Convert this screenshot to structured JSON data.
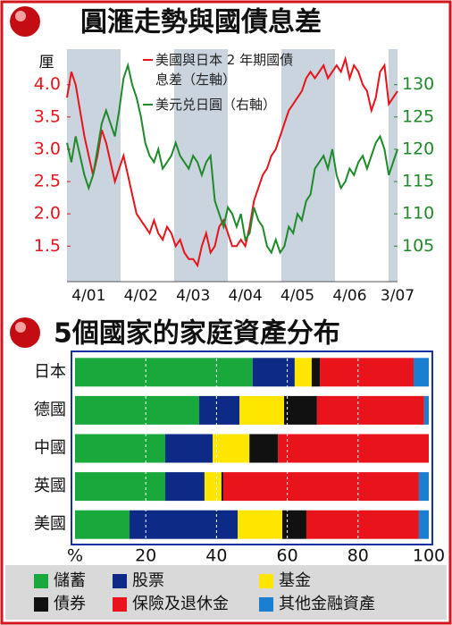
{
  "chart_data": [
    {
      "type": "line",
      "title": "圓滙走勢與國債息差",
      "y_label": "厘",
      "categories": [
        null,
        null,
        null,
        null,
        null,
        "4/01",
        null,
        null,
        null,
        null,
        null,
        null,
        null,
        null,
        null,
        null,
        null,
        "4/02",
        null,
        null,
        null,
        null,
        null,
        null,
        null,
        null,
        null,
        null,
        null,
        "4/03",
        null,
        null,
        null,
        null,
        null,
        null,
        null,
        null,
        null,
        null,
        null,
        "4/04",
        null,
        null,
        null,
        null,
        null,
        null,
        null,
        null,
        null,
        null,
        null,
        "4/05",
        null,
        null,
        null,
        null,
        null,
        null,
        null,
        null,
        null,
        null,
        null,
        "4/06",
        null,
        null,
        null,
        null,
        null,
        null,
        null,
        null,
        null,
        null,
        "3/07"
      ],
      "series": [
        {
          "name": "美國與日本 2 年期國債息差（左軸）",
          "color": "#e8131b",
          "values": [
            3.8,
            4.2,
            4.0,
            3.6,
            3.2,
            2.9,
            2.6,
            2.9,
            3.3,
            3.1,
            2.8,
            2.5,
            2.7,
            2.9,
            2.6,
            2.3,
            2.0,
            1.9,
            1.8,
            1.7,
            1.9,
            1.7,
            1.6,
            1.8,
            1.7,
            1.5,
            1.6,
            1.4,
            1.3,
            1.3,
            1.2,
            1.5,
            1.7,
            1.4,
            1.5,
            1.8,
            1.9,
            1.7,
            1.5,
            1.5,
            1.6,
            1.5,
            1.8,
            2.2,
            2.4,
            2.6,
            2.7,
            2.9,
            3.0,
            3.2,
            3.4,
            3.6,
            3.7,
            3.8,
            3.9,
            4.1,
            4.2,
            4.1,
            4.2,
            4.3,
            4.1,
            4.2,
            4.3,
            4.2,
            4.4,
            4.1,
            4.3,
            4.2,
            4.0,
            3.9,
            3.6,
            3.8,
            4.2,
            4.3,
            3.7,
            3.8,
            3.9
          ]
        },
        {
          "name": "美元兑日圓（右軸）",
          "color": "#1e8a2a",
          "axis": "y2",
          "values": [
            121,
            118,
            122,
            119,
            116,
            114,
            116,
            120,
            124,
            126,
            124,
            122,
            126,
            131,
            133,
            130,
            128,
            125,
            121,
            119,
            118,
            120,
            117,
            118,
            119,
            121,
            119,
            118,
            117,
            119,
            118,
            116,
            118,
            119,
            112,
            110,
            108,
            111,
            110,
            108,
            110,
            106,
            107,
            111,
            109,
            108,
            105,
            104,
            106,
            104,
            105,
            108,
            107,
            110,
            109,
            112,
            113,
            117,
            118,
            119,
            117,
            120,
            116,
            114,
            115,
            117,
            116,
            118,
            119,
            117,
            119,
            121,
            122,
            120,
            116,
            118,
            120
          ]
        }
      ],
      "ylim": [
        0.95,
        4.55
      ],
      "yticks": [
        1.5,
        {
          "value": 2,
          "label": "2.0"
        },
        2.5,
        {
          "value": 3,
          "label": "3.0"
        },
        3.5,
        {
          "value": 4,
          "label": "4.0"
        }
      ],
      "y2lim": [
        99.5,
        135.5
      ],
      "y2ticks": [
        105,
        110,
        115,
        120,
        125,
        130
      ],
      "grid": false
    },
    {
      "type": "stacked_bar_horizontal",
      "title": "5個國家的家庭資產分布",
      "categories": [
        "日本",
        "德國",
        "中國",
        "英國",
        "美國"
      ],
      "series": [
        {
          "name": "儲蓄",
          "color": "#19a83b",
          "values": [
            50.2,
            35.1,
            25.5,
            25.5,
            15.4
          ]
        },
        {
          "name": "股票",
          "color": "#0d2a86",
          "values": [
            11.9,
            11.4,
            13.4,
            11.1,
            30.6
          ]
        },
        {
          "name": "基金",
          "color": "#ffe600",
          "values": [
            4.8,
            12.6,
            10.4,
            4.8,
            12.6
          ]
        },
        {
          "name": "債券",
          "color": "#111111",
          "values": [
            2.3,
            9.3,
            8.1,
            0.5,
            6.8
          ]
        },
        {
          "name": "保險及退休金",
          "color": "#e8131b",
          "values": [
            26.5,
            30.3,
            42.6,
            55.3,
            31.8
          ]
        },
        {
          "name": "其他金融資產",
          "color": "#1a7fd0",
          "values": [
            4.3,
            1.3,
            0,
            2.8,
            2.8
          ]
        }
      ],
      "xlim": [
        0,
        100
      ],
      "xticks": [
        {
          "value": 0,
          "label": "%"
        },
        20,
        40,
        60,
        80,
        100
      ],
      "grid": true
    }
  ]
}
